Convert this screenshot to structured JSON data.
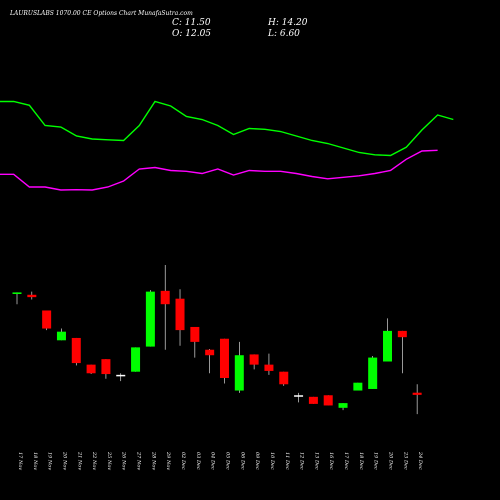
{
  "chart_data": {
    "type": "candlestick",
    "title": "LAURUSLABS 1070.00 CE Options Chart MunafaSutra.com",
    "ohlc": {
      "close": "C: 11.50",
      "high": "H: 14.20",
      "open": "O: 12.05",
      "low": "L: 6.60"
    },
    "x": [
      "17 Nov",
      "18 Nov",
      "19 Nov",
      "20 Nov",
      "21 Nov",
      "22 Nov",
      "25 Nov",
      "26 Nov",
      "27 Nov",
      "28 Nov",
      "29 Nov",
      "02 Dec",
      "03 Dec",
      "04 Dec",
      "05 Dec",
      "06 Dec",
      "09 Dec",
      "10 Dec",
      "11 Dec",
      "12 Dec",
      "13 Dec",
      "16 Dec",
      "17 Dec",
      "18 Dec",
      "19 Dec",
      "20 Dec",
      "23 Dec",
      "24 Dec"
    ],
    "candles": [
      {
        "o": 37.2,
        "h": 37.6,
        "l": 34.6,
        "c": 37.6
      },
      {
        "o": 37.0,
        "h": 37.8,
        "l": 35.8,
        "c": 36.4
      },
      {
        "o": 33.0,
        "h": 33.0,
        "l": 28.0,
        "c": 28.4
      },
      {
        "o": 25.4,
        "h": 28.4,
        "l": 25.4,
        "c": 27.6
      },
      {
        "o": 26.0,
        "h": 26.0,
        "l": 19.0,
        "c": 19.6
      },
      {
        "o": 19.2,
        "h": 19.2,
        "l": 16.8,
        "c": 17.0
      },
      {
        "o": 20.6,
        "h": 20.6,
        "l": 15.6,
        "c": 16.8
      },
      {
        "o": 16.6,
        "h": 17.0,
        "l": 15.0,
        "c": 16.6
      },
      {
        "o": 17.4,
        "h": 23.6,
        "l": 17.4,
        "c": 23.6
      },
      {
        "o": 23.8,
        "h": 38.2,
        "l": 23.8,
        "c": 37.8
      },
      {
        "o": 38.0,
        "h": 44.6,
        "l": 23.0,
        "c": 34.6
      },
      {
        "o": 36.0,
        "h": 38.4,
        "l": 24.0,
        "c": 28.0
      },
      {
        "o": 28.8,
        "h": 28.8,
        "l": 21.0,
        "c": 25.0
      },
      {
        "o": 23.0,
        "h": 23.2,
        "l": 17.0,
        "c": 21.6
      },
      {
        "o": 25.8,
        "h": 25.8,
        "l": 14.4,
        "c": 15.8
      },
      {
        "o": 12.6,
        "h": 25.0,
        "l": 12.0,
        "c": 21.6
      },
      {
        "o": 21.8,
        "h": 21.8,
        "l": 18.0,
        "c": 19.2
      },
      {
        "o": 19.2,
        "h": 22.0,
        "l": 16.6,
        "c": 17.6
      },
      {
        "o": 17.4,
        "h": 17.4,
        "l": 13.8,
        "c": 14.2
      },
      {
        "o": 11.4,
        "h": 12.0,
        "l": 9.6,
        "c": 11.4
      },
      {
        "o": 11.0,
        "h": 11.0,
        "l": 9.2,
        "c": 9.2
      },
      {
        "o": 11.4,
        "h": 11.4,
        "l": 8.8,
        "c": 8.8
      },
      {
        "o": 8.2,
        "h": 9.4,
        "l": 7.6,
        "c": 9.4
      },
      {
        "o": 12.6,
        "h": 14.6,
        "l": 12.6,
        "c": 14.6
      },
      {
        "o": 13.0,
        "h": 21.4,
        "l": 13.0,
        "c": 21.0
      },
      {
        "o": 20.0,
        "h": 31.0,
        "l": 20.0,
        "c": 27.8
      },
      {
        "o": 27.8,
        "h": 27.8,
        "l": 17.0,
        "c": 26.2
      },
      {
        "o": 12.05,
        "h": 14.2,
        "l": 6.6,
        "c": 11.5
      }
    ],
    "green_line": [
      89.0,
      89.0,
      86.5,
      73.0,
      72.0,
      66.0,
      64.0,
      63.5,
      63.0,
      73.0,
      89.0,
      86.0,
      79.0,
      77.0,
      73.0,
      67.0,
      71.0,
      70.5,
      69.0,
      66.0,
      63.0,
      61.0,
      58.0,
      55.0,
      53.5,
      53.0,
      58.5,
      70.0,
      80.0,
      77.0
    ],
    "magenta_line": [
      40.5,
      40.5,
      32.0,
      32.0,
      30.0,
      30.2,
      30.0,
      32.0,
      36.0,
      44.0,
      45.0,
      43.0,
      42.5,
      41.0,
      44.0,
      40.0,
      43.0,
      42.5,
      42.5,
      41.0,
      39.0,
      37.5,
      38.5,
      39.5,
      41.0,
      43.0,
      50.5,
      56.0,
      56.5
    ],
    "colors": {
      "up": "#00ff00",
      "down": "#ff0000",
      "doji": "#ffffff",
      "ma_fast": "#00ff00",
      "ma_slow": "#ff00ff",
      "background": "#000000"
    }
  }
}
